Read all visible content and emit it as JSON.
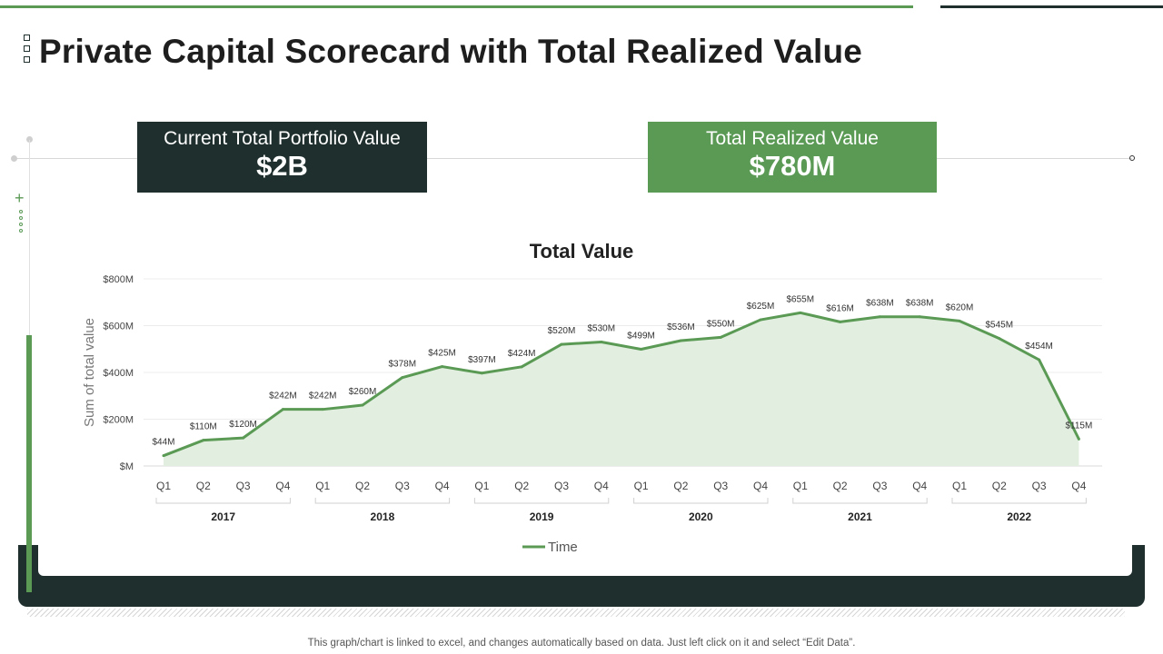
{
  "title": "Private Capital Scorecard with Total Realized Value",
  "kpis": {
    "portfolio": {
      "label": "Current Total Portfolio Value",
      "value": "$2B"
    },
    "realized": {
      "label": "Total Realized Value",
      "value": "$780M"
    }
  },
  "colors": {
    "dark": "#1f2f2e",
    "green": "#5a9a55",
    "area": "#e2efe0"
  },
  "footnote": "This graph/chart is linked to excel,  and changes automatically based on data. Just left click on it and select “Edit Data”.",
  "chart_data": {
    "type": "area",
    "title": "Total Value",
    "ylabel": "Sum of total value",
    "xlabel": "",
    "ylim": [
      0,
      800
    ],
    "yticks": [
      0,
      200,
      400,
      600,
      800
    ],
    "ytick_labels": [
      "$M",
      "$200M",
      "$400M",
      "$600M",
      "$800M"
    ],
    "grid": true,
    "legend": "bottom-center",
    "series": [
      {
        "name": "Time",
        "values": [
          44,
          110,
          120,
          242,
          242,
          260,
          378,
          425,
          397,
          424,
          520,
          530,
          499,
          536,
          550,
          625,
          655,
          616,
          638,
          638,
          620,
          545,
          454,
          115
        ],
        "labels": [
          "$44M",
          "$110M",
          "$120M",
          "$242M",
          "$242M",
          "$260M",
          "$378M",
          "$425M",
          "$397M",
          "$424M",
          "$520M",
          "$530M",
          "$499M",
          "$536M",
          "$550M",
          "$625M",
          "$655M",
          "$616M",
          "$638M",
          "$638M",
          "$620M",
          "$545M",
          "$454M",
          "$115M"
        ]
      }
    ],
    "categories": [
      "Q1",
      "Q2",
      "Q3",
      "Q4",
      "Q1",
      "Q2",
      "Q3",
      "Q4",
      "Q1",
      "Q2",
      "Q3",
      "Q4",
      "Q1",
      "Q2",
      "Q3",
      "Q4",
      "Q1",
      "Q2",
      "Q3",
      "Q4",
      "Q1",
      "Q2",
      "Q3",
      "Q4"
    ],
    "groups": [
      "2017",
      "2018",
      "2019",
      "2020",
      "2021",
      "2022"
    ]
  }
}
